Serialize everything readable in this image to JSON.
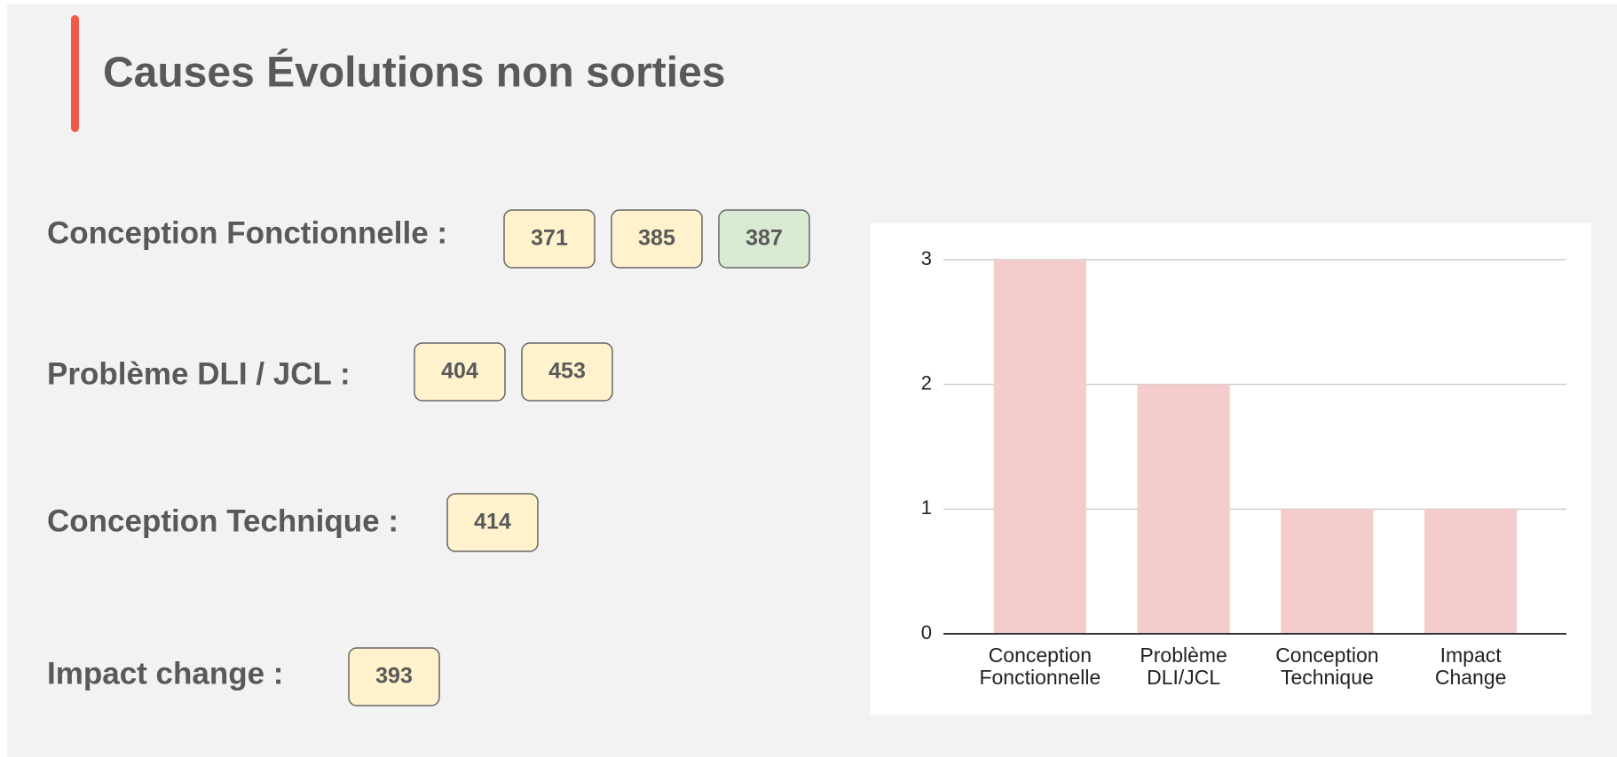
{
  "title": "Causes Évolutions non sorties",
  "groups": [
    {
      "label": "Conception Fonctionnelle :",
      "tickets": [
        {
          "id": 371,
          "color": "#fff2cc"
        },
        {
          "id": 385,
          "color": "#fff2cc"
        },
        {
          "id": 387,
          "color": "#d9ead3"
        }
      ]
    },
    {
      "label": "Problème DLI / JCL :",
      "tickets": [
        {
          "id": 404,
          "color": "#fff2cc"
        },
        {
          "id": 453,
          "color": "#fff2cc"
        }
      ]
    },
    {
      "label": "Conception Technique :",
      "tickets": [
        {
          "id": 414,
          "color": "#fff2cc"
        }
      ]
    },
    {
      "label": "Impact change :",
      "tickets": [
        {
          "id": 393,
          "color": "#fff2cc"
        }
      ]
    }
  ],
  "chart_data": {
    "type": "bar",
    "categories": [
      "Conception Fonctionnelle",
      "Problème DLI/JCL",
      "Conception Technique",
      "Impact Change"
    ],
    "values": [
      3,
      2,
      1,
      1
    ],
    "color": "#f4cccc",
    "ylim": [
      0,
      3
    ],
    "yticks": [
      0,
      1,
      2,
      3
    ],
    "grid": true
  }
}
